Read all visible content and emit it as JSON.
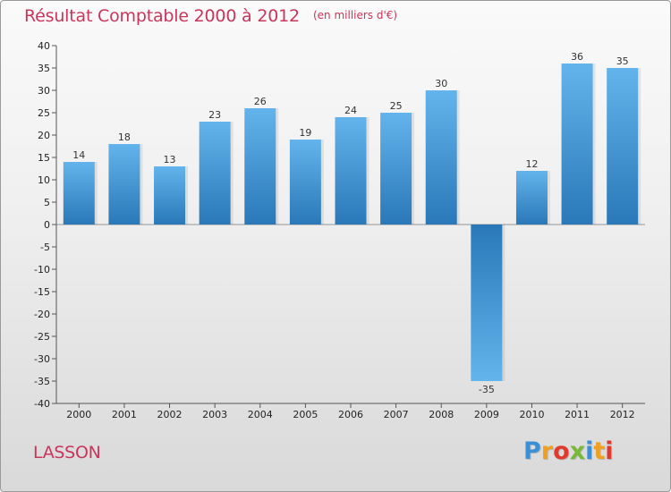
{
  "chart_data": {
    "type": "bar",
    "title": "Résultat Comptable 2000 à 2012",
    "subtitle": "(en milliers d'€)",
    "categories": [
      "2000",
      "2001",
      "2002",
      "2003",
      "2004",
      "2005",
      "2006",
      "2007",
      "2008",
      "2009",
      "2010",
      "2011",
      "2012"
    ],
    "values": [
      14,
      18,
      13,
      23,
      26,
      19,
      24,
      25,
      30,
      -35,
      12,
      36,
      35
    ],
    "data_labels": [
      "14",
      "18",
      "13",
      "23",
      "26",
      "19",
      "24",
      "25",
      "30",
      "-35",
      "12",
      "36",
      "35"
    ],
    "ylim": [
      -40,
      40
    ],
    "yticks": [
      40,
      35,
      30,
      25,
      20,
      15,
      10,
      5,
      0,
      -5,
      -10,
      -15,
      -20,
      -25,
      -30,
      -35,
      -40
    ],
    "ytick_labels": [
      "40",
      "35",
      "30",
      "25",
      "20",
      "15",
      "10",
      "5",
      "0",
      "-5",
      "-10",
      "-15",
      "-20",
      "-25",
      "-30",
      "-35",
      "-40"
    ],
    "xlabel": "",
    "ylabel": "",
    "grid": false,
    "legend": "none"
  },
  "footer": {
    "commune": "LASSON",
    "logo_letters": [
      {
        "char": "P",
        "color": "#3b8fd6"
      },
      {
        "char": "r",
        "color": "#f0a020"
      },
      {
        "char": "o",
        "color": "#e03a2e"
      },
      {
        "char": "x",
        "color": "#79b83a"
      },
      {
        "char": "i",
        "color": "#3b8fd6"
      },
      {
        "char": "t",
        "color": "#f0a020"
      },
      {
        "char": "i",
        "color": "#e03a2e"
      }
    ]
  },
  "colors": {
    "bar_dark": "#2a78b8",
    "bar_light": "#63b4ec",
    "accent": "#c8365c"
  }
}
